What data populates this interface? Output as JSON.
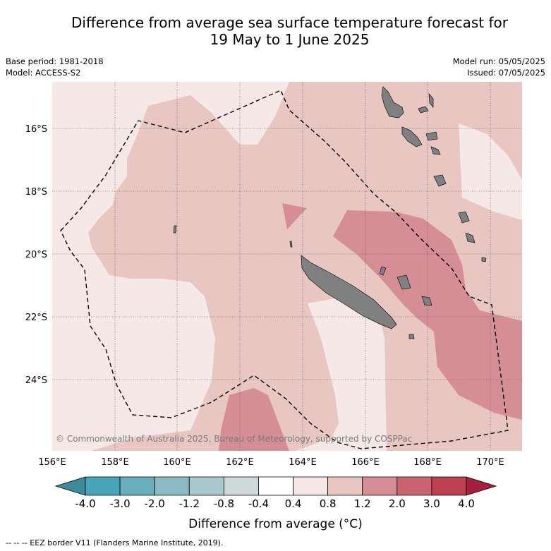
{
  "title": {
    "line1": "Difference from average sea surface temperature forecast for",
    "line2": "19 May to 1 June 2025"
  },
  "meta": {
    "base_period": "Base period: 1981-2018",
    "model": "Model: ACCESS-S2",
    "model_run": "Model run: 05/05/2025",
    "issued": "Issued: 07/05/2025"
  },
  "map": {
    "lat_labels": [
      "16°S",
      "18°S",
      "20°S",
      "22°S",
      "24°S"
    ],
    "lon_labels": [
      "156°E",
      "158°E",
      "160°E",
      "162°E",
      "164°E",
      "166°E",
      "168°E",
      "170°E"
    ],
    "copyright": "© Commonwealth of Australia 2025, Bureau of Meteorology, supported by COSPPac",
    "land_color": "#808080"
  },
  "colorbar": {
    "title": "Difference from average (°C)",
    "tick_labels": [
      "-4.0",
      "-3.0",
      "-2.0",
      "-1.2",
      "-0.8",
      "-0.4",
      "0.4",
      "0.8",
      "1.2",
      "2.0",
      "3.0",
      "4.0"
    ],
    "colors": [
      "#3d8a9a",
      "#49a5b5",
      "#6aaebb",
      "#8bbac4",
      "#a8c8cc",
      "#cfd9da",
      "#ffffff",
      "#f5e8e7",
      "#e8c6c2",
      "#d68e96",
      "#cb6471",
      "#bc4252",
      "#a61f3c"
    ]
  },
  "footer": {
    "legend": "-- -- -- EEZ border V11 (Flanders Marine Institute, 2019)."
  }
}
